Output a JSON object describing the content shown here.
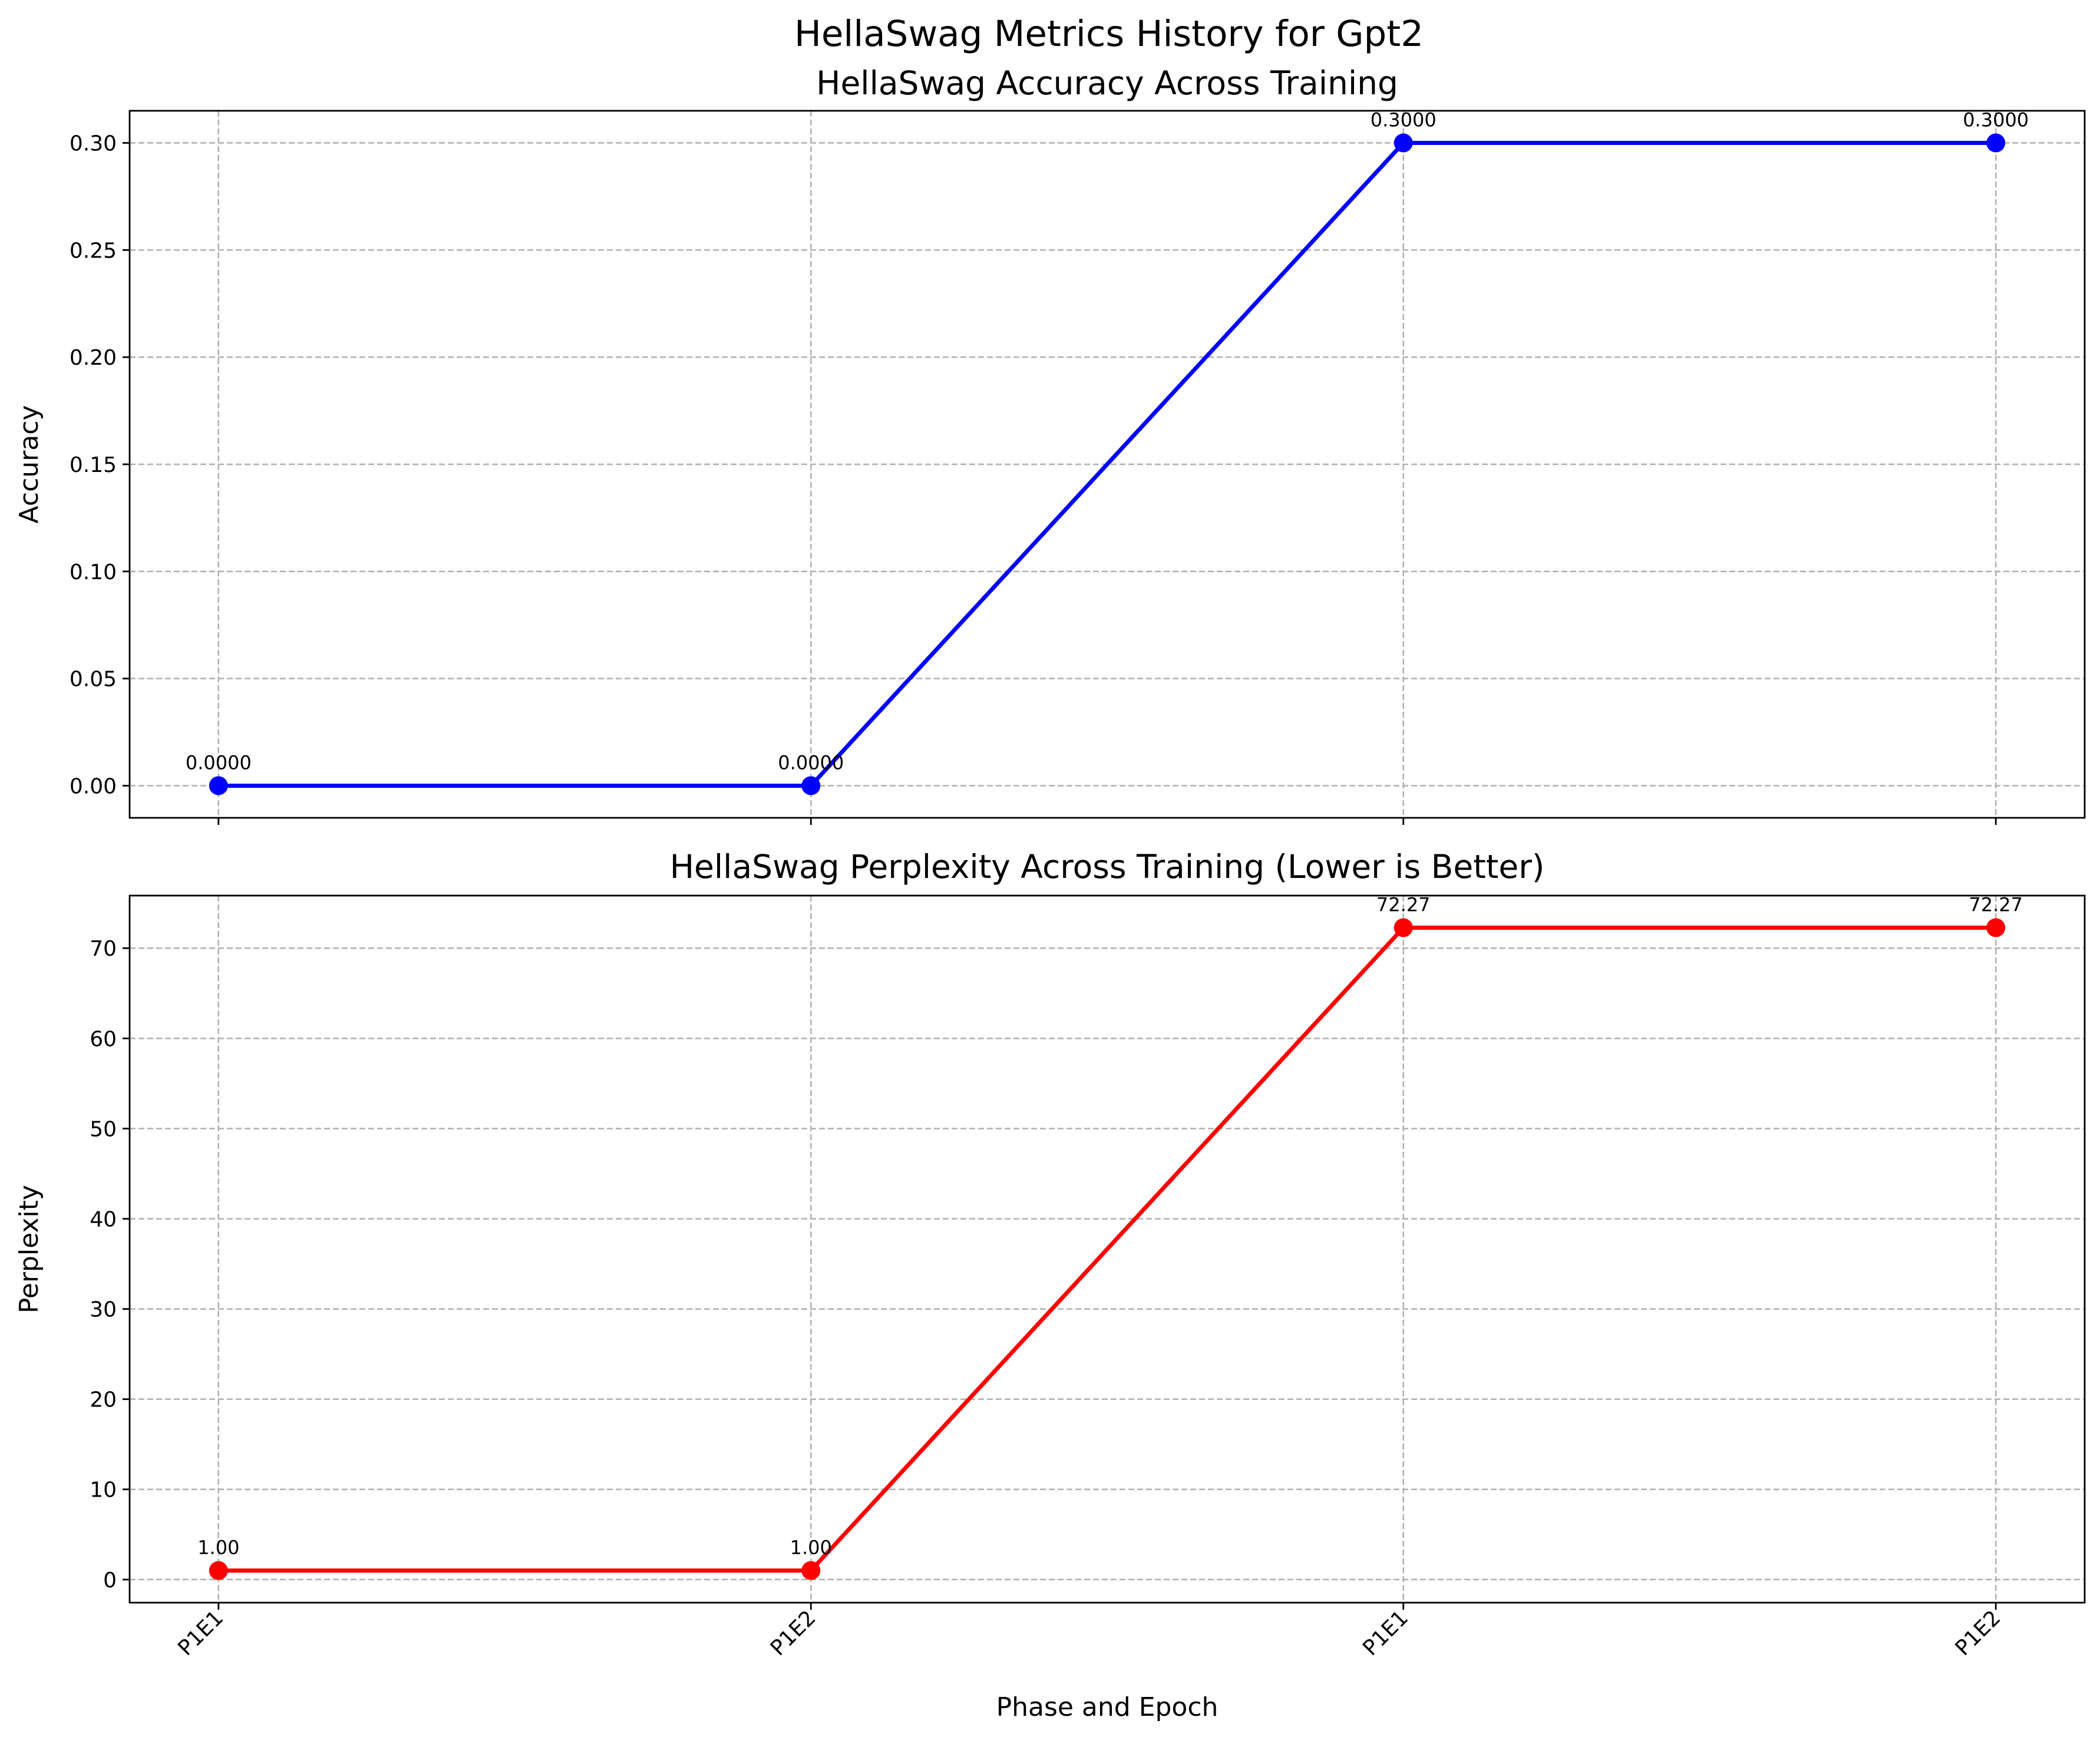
{
  "figure_title": "HellaSwag Metrics History for Gpt2",
  "chart_data": [
    {
      "type": "line",
      "title": "HellaSwag Accuracy Across Training",
      "xlabel": "",
      "ylabel": "Accuracy",
      "categories": [
        "P1E1",
        "P1E2",
        "P1E1",
        "P1E2"
      ],
      "series": [
        {
          "values": [
            0.0,
            0.0,
            0.3,
            0.3
          ],
          "color": "#0000ff"
        }
      ],
      "data_labels": [
        "0.0000",
        "0.0000",
        "0.3000",
        "0.3000"
      ],
      "ylim": [
        -0.015,
        0.315
      ],
      "yticks": [
        0.0,
        0.05,
        0.1,
        0.15,
        0.2,
        0.25,
        0.3
      ],
      "ytick_labels": [
        "0.00",
        "0.05",
        "0.10",
        "0.15",
        "0.20",
        "0.25",
        "0.30"
      ],
      "show_xtick_labels": false,
      "grid": true,
      "marker": "circle"
    },
    {
      "type": "line",
      "title": "HellaSwag Perplexity Across Training (Lower is Better)",
      "xlabel": "Phase and Epoch",
      "ylabel": "Perplexity",
      "categories": [
        "P1E1",
        "P1E2",
        "P1E1",
        "P1E2"
      ],
      "series": [
        {
          "values": [
            1.0,
            1.0,
            72.27,
            72.27
          ],
          "color": "#ff0000"
        }
      ],
      "data_labels": [
        "1.00",
        "1.00",
        "72.27",
        "72.27"
      ],
      "ylim": [
        -2.56,
        75.83
      ],
      "yticks": [
        0,
        10,
        20,
        30,
        40,
        50,
        60,
        70
      ],
      "ytick_labels": [
        "0",
        "10",
        "20",
        "30",
        "40",
        "50",
        "60",
        "70"
      ],
      "show_xtick_labels": true,
      "xtick_rotation_deg": 45,
      "grid": true,
      "marker": "circle"
    }
  ]
}
